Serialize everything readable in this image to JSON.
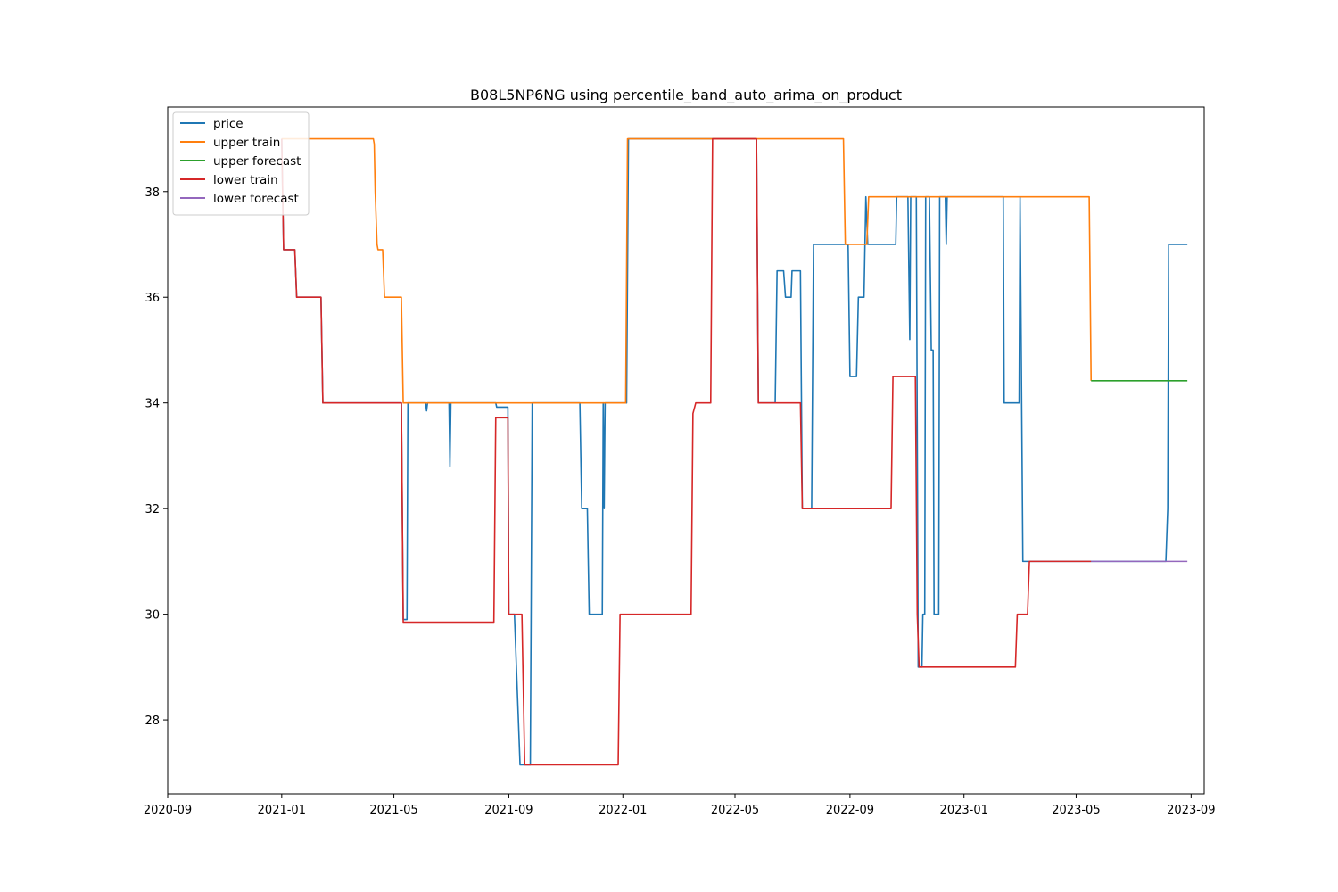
{
  "chart_data": {
    "type": "line",
    "title": "B08L5NP6NG using percentile_band_auto_arima_on_product",
    "xlabel": "",
    "ylabel": "",
    "x_type": "date",
    "xlim": [
      "2020-09-01",
      "2023-09-15"
    ],
    "ylim": [
      26.6,
      39.6
    ],
    "x_ticks": [
      "2020-09",
      "2021-01",
      "2021-05",
      "2021-09",
      "2022-01",
      "2022-05",
      "2022-09",
      "2023-01",
      "2023-05",
      "2023-09"
    ],
    "y_ticks": [
      28,
      30,
      32,
      34,
      36,
      38
    ],
    "grid": false,
    "legend_position": "upper-left",
    "series": [
      {
        "name": "price",
        "color": "#1f77b4",
        "points": [
          [
            "2021-01-01",
            39.0
          ],
          [
            "2021-01-03",
            36.9
          ],
          [
            "2021-01-15",
            36.9
          ],
          [
            "2021-01-17",
            36.0
          ],
          [
            "2021-02-12",
            36.0
          ],
          [
            "2021-02-14",
            34.0
          ],
          [
            "2021-05-09",
            34.0
          ],
          [
            "2021-05-11",
            29.9
          ],
          [
            "2021-05-15",
            29.9
          ],
          [
            "2021-05-16",
            34.0
          ],
          [
            "2021-06-04",
            34.0
          ],
          [
            "2021-06-05",
            33.85
          ],
          [
            "2021-06-06",
            34.0
          ],
          [
            "2021-06-29",
            34.0
          ],
          [
            "2021-06-30",
            32.8
          ],
          [
            "2021-07-01",
            34.0
          ],
          [
            "2021-08-18",
            34.0
          ],
          [
            "2021-08-19",
            33.92
          ],
          [
            "2021-08-31",
            33.92
          ],
          [
            "2021-09-01",
            30.0
          ],
          [
            "2021-09-07",
            30.0
          ],
          [
            "2021-09-13",
            27.15
          ],
          [
            "2021-09-24",
            27.15
          ],
          [
            "2021-09-26",
            34.0
          ],
          [
            "2021-11-16",
            34.0
          ],
          [
            "2021-11-18",
            32.0
          ],
          [
            "2021-11-24",
            32.0
          ],
          [
            "2021-11-26",
            30.0
          ],
          [
            "2021-12-10",
            30.0
          ],
          [
            "2021-12-11",
            34.0
          ],
          [
            "2021-12-12",
            32.0
          ],
          [
            "2021-12-13",
            34.0
          ],
          [
            "2021-12-30",
            34.0
          ],
          [
            "2022-01-05",
            34.0
          ],
          [
            "2022-01-07",
            39.0
          ],
          [
            "2022-05-24",
            39.0
          ],
          [
            "2022-05-26",
            34.0
          ],
          [
            "2022-06-13",
            34.0
          ],
          [
            "2022-06-15",
            36.5
          ],
          [
            "2022-06-22",
            36.5
          ],
          [
            "2022-06-24",
            36.0
          ],
          [
            "2022-06-30",
            36.0
          ],
          [
            "2022-07-01",
            36.5
          ],
          [
            "2022-07-10",
            36.5
          ],
          [
            "2022-07-12",
            32.0
          ],
          [
            "2022-07-22",
            32.0
          ],
          [
            "2022-07-24",
            37.0
          ],
          [
            "2022-08-30",
            37.0
          ],
          [
            "2022-09-01",
            34.5
          ],
          [
            "2022-09-08",
            34.5
          ],
          [
            "2022-09-10",
            36.0
          ],
          [
            "2022-09-16",
            36.0
          ],
          [
            "2022-09-18",
            37.9
          ],
          [
            "2022-09-20",
            37.0
          ],
          [
            "2022-10-20",
            37.0
          ],
          [
            "2022-10-21",
            37.9
          ],
          [
            "2022-11-02",
            37.9
          ],
          [
            "2022-11-04",
            35.2
          ],
          [
            "2022-11-05",
            37.9
          ],
          [
            "2022-11-11",
            37.9
          ],
          [
            "2022-11-13",
            29.0
          ],
          [
            "2022-11-17",
            29.0
          ],
          [
            "2022-11-18",
            30.0
          ],
          [
            "2022-11-20",
            30.0
          ],
          [
            "2022-11-21",
            37.9
          ],
          [
            "2022-11-25",
            37.9
          ],
          [
            "2022-11-27",
            35.0
          ],
          [
            "2022-11-29",
            35.0
          ],
          [
            "2022-11-30",
            30.0
          ],
          [
            "2022-12-05",
            30.0
          ],
          [
            "2022-12-06",
            37.9
          ],
          [
            "2022-12-12",
            37.9
          ],
          [
            "2022-12-13",
            37.0
          ],
          [
            "2022-12-14",
            37.9
          ],
          [
            "2023-02-12",
            37.9
          ],
          [
            "2023-02-13",
            34.0
          ],
          [
            "2023-03-01",
            34.0
          ],
          [
            "2023-03-02",
            37.9
          ],
          [
            "2023-03-05",
            31.0
          ],
          [
            "2023-08-05",
            31.0
          ],
          [
            "2023-08-07",
            32.0
          ],
          [
            "2023-08-08",
            37.0
          ],
          [
            "2023-08-28",
            37.0
          ]
        ]
      },
      {
        "name": "upper train",
        "color": "#ff7f0e",
        "points": [
          [
            "2021-01-01",
            39.0
          ],
          [
            "2021-04-09",
            39.0
          ],
          [
            "2021-04-10",
            38.9
          ],
          [
            "2021-04-11",
            38.0
          ],
          [
            "2021-04-13",
            37.0
          ],
          [
            "2021-04-14",
            36.9
          ],
          [
            "2021-04-19",
            36.9
          ],
          [
            "2021-04-21",
            36.0
          ],
          [
            "2021-05-09",
            36.0
          ],
          [
            "2021-05-11",
            34.0
          ],
          [
            "2022-01-04",
            34.0
          ],
          [
            "2022-01-06",
            39.0
          ],
          [
            "2022-08-25",
            39.0
          ],
          [
            "2022-08-27",
            37.0
          ],
          [
            "2022-09-19",
            37.0
          ],
          [
            "2022-09-21",
            37.9
          ],
          [
            "2023-05-15",
            37.9
          ],
          [
            "2023-05-17",
            34.42
          ]
        ]
      },
      {
        "name": "upper forecast",
        "color": "#2ca02c",
        "points": [
          [
            "2023-05-17",
            34.42
          ],
          [
            "2023-08-28",
            34.42
          ]
        ]
      },
      {
        "name": "lower train",
        "color": "#d62728",
        "points": [
          [
            "2021-01-01",
            39.0
          ],
          [
            "2021-01-03",
            36.9
          ],
          [
            "2021-01-15",
            36.9
          ],
          [
            "2021-01-17",
            36.0
          ],
          [
            "2021-02-12",
            36.0
          ],
          [
            "2021-02-14",
            34.0
          ],
          [
            "2021-05-09",
            34.0
          ],
          [
            "2021-05-11",
            29.85
          ],
          [
            "2021-08-16",
            29.85
          ],
          [
            "2021-08-18",
            33.72
          ],
          [
            "2021-08-31",
            33.72
          ],
          [
            "2021-09-01",
            30.0
          ],
          [
            "2021-09-15",
            30.0
          ],
          [
            "2021-09-18",
            27.15
          ],
          [
            "2021-12-27",
            27.15
          ],
          [
            "2021-12-29",
            30.0
          ],
          [
            "2022-03-15",
            30.0
          ],
          [
            "2022-03-17",
            33.8
          ],
          [
            "2022-03-20",
            34.0
          ],
          [
            "2022-04-05",
            34.0
          ],
          [
            "2022-04-07",
            39.0
          ],
          [
            "2022-05-24",
            39.0
          ],
          [
            "2022-05-26",
            34.0
          ],
          [
            "2022-07-10",
            34.0
          ],
          [
            "2022-07-12",
            32.0
          ],
          [
            "2022-10-15",
            32.0
          ],
          [
            "2022-10-17",
            34.5
          ],
          [
            "2022-11-10",
            34.5
          ],
          [
            "2022-11-12",
            30.0
          ],
          [
            "2022-11-14",
            29.0
          ],
          [
            "2023-02-25",
            29.0
          ],
          [
            "2023-02-27",
            30.0
          ],
          [
            "2023-03-10",
            30.0
          ],
          [
            "2023-03-12",
            31.0
          ],
          [
            "2023-05-17",
            31.0
          ]
        ]
      },
      {
        "name": "lower forecast",
        "color": "#9467bd",
        "points": [
          [
            "2023-05-17",
            31.0
          ],
          [
            "2023-08-28",
            31.0
          ]
        ]
      }
    ]
  }
}
